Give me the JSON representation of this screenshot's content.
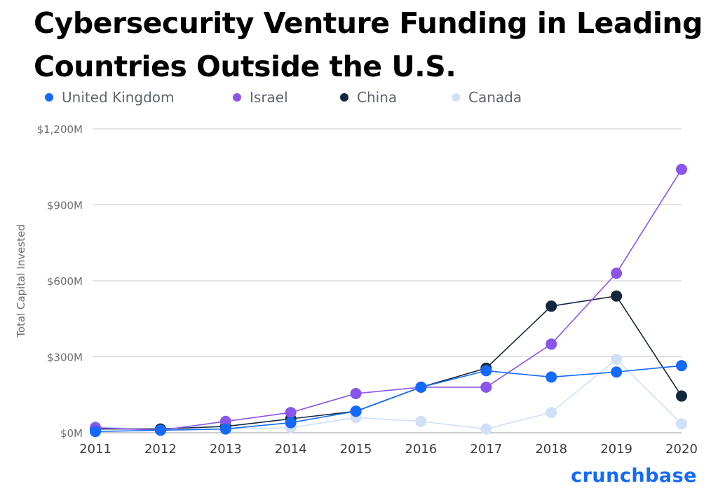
{
  "title_lines": [
    "Cybersecurity Venture Funding in Leading",
    "Countries Outside the U.S."
  ],
  "brand": "crunchbase",
  "colors": {
    "United Kingdom": "#146aff",
    "Israel": "#8a55ec",
    "China": "#14273e",
    "Canada": "#cfe0f7",
    "grid": "#c8c8c8",
    "axis_text": "#6e6e6e"
  },
  "chart_data": {
    "type": "line",
    "title": "Cybersecurity Venture Funding in Leading Countries Outside the U.S.",
    "xlabel": "",
    "ylabel": "Total Capital Invested",
    "x": [
      "2011",
      "2012",
      "2013",
      "2014",
      "2015",
      "2016",
      "2017",
      "2018",
      "2019",
      "2020"
    ],
    "ylim": [
      0,
      1200
    ],
    "yticks": [
      0,
      300,
      600,
      900,
      1200
    ],
    "ytick_labels": [
      "$0M",
      "$300M",
      "$600M",
      "$900M",
      "$1,200M"
    ],
    "grid": true,
    "legend_position": "top",
    "series": [
      {
        "name": "Canada",
        "values": [
          25,
          10,
          15,
          20,
          60,
          45,
          15,
          80,
          290,
          35
        ]
      },
      {
        "name": "China",
        "values": [
          15,
          15,
          25,
          55,
          85,
          180,
          255,
          500,
          540,
          145
        ]
      },
      {
        "name": "Israel",
        "values": [
          20,
          10,
          45,
          80,
          155,
          180,
          180,
          350,
          630,
          1040
        ]
      },
      {
        "name": "United Kingdom",
        "values": [
          5,
          10,
          15,
          40,
          85,
          180,
          245,
          220,
          240,
          265
        ]
      }
    ]
  }
}
